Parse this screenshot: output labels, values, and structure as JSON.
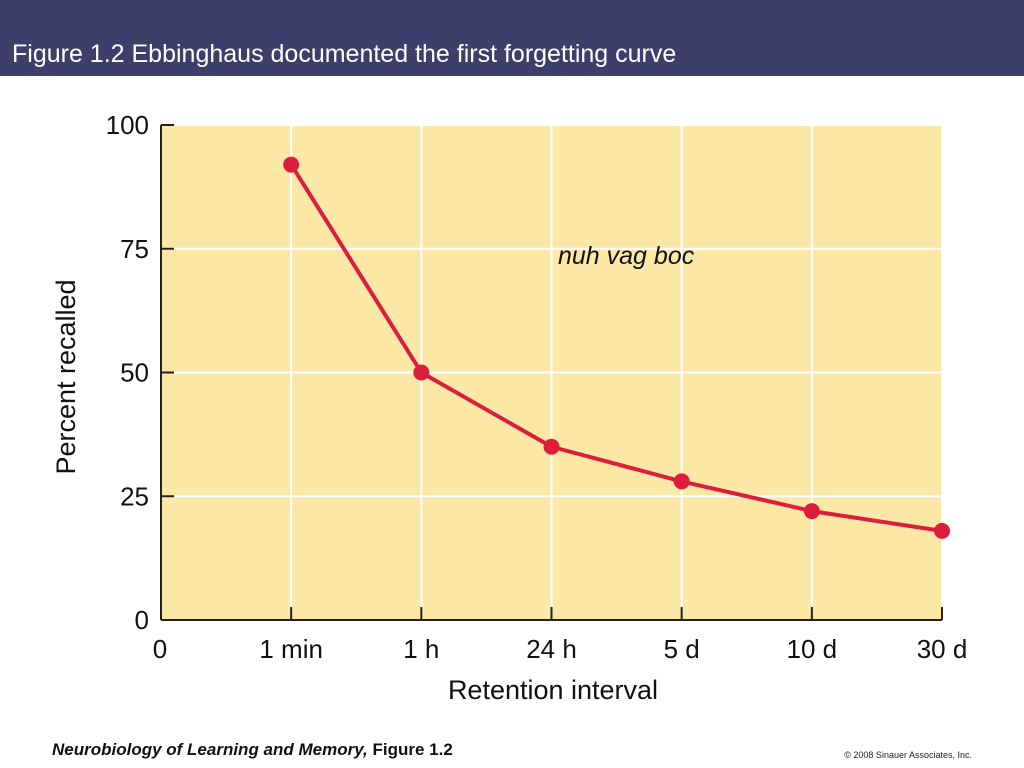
{
  "header": {
    "title": "Figure 1.2  Ebbinghaus documented the first forgetting curve"
  },
  "footer": {
    "book_title": "Neurobiology of Learning and Memory,",
    "figure_ref": " Figure 1.2",
    "copyright": "© 2008 Sinauer Associates, Inc."
  },
  "colors": {
    "header_bg": "#3d3e6a",
    "plot_bg": "#fce8a6",
    "grid": "#ffffff",
    "series": "#dc1e3c"
  },
  "chart_data": {
    "type": "line",
    "title": "",
    "xlabel": "Retention interval",
    "ylabel": "Percent recalled",
    "categories": [
      "0",
      "1 min",
      "1 h",
      "24 h",
      "5 d",
      "10 d",
      "30 d"
    ],
    "yticks": [
      "0",
      "25",
      "50",
      "75",
      "100"
    ],
    "ylim": [
      0,
      100
    ],
    "grid": true,
    "annotation": "nuh vag boc",
    "series": [
      {
        "x": [
          "1 min",
          "1 h",
          "24 h",
          "5 d",
          "10 d",
          "30 d"
        ],
        "values": [
          92,
          50,
          35,
          28,
          22,
          18
        ]
      }
    ]
  }
}
